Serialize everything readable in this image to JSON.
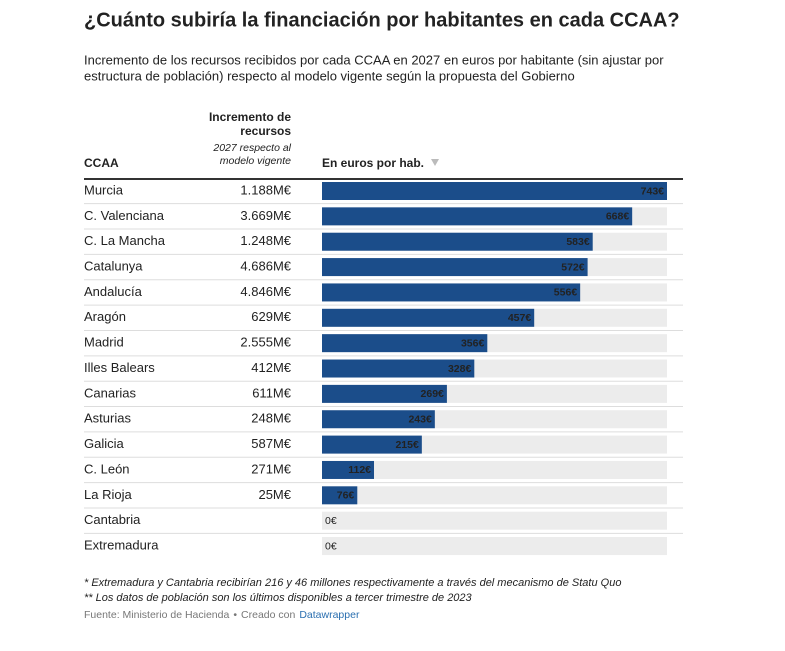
{
  "chart_data": {
    "type": "bar",
    "title": "¿Cuánto subiría la financiación por habitantes en cada CCAA?",
    "subtitle": [
      "Incremento de los recursos recibidos por cada CCAA en 2027 en euros por habitante (sin ajustar por",
      "estructura de población) respecto al modelo vigente según la propuesta del Gobierno"
    ],
    "headers": {
      "region": "CCAA",
      "increase": [
        "Incremento de",
        "recursos"
      ],
      "increase_note": [
        "2027 respecto al",
        "modelo vigente"
      ],
      "bars": "En euros por hab."
    },
    "categories": [
      "Murcia",
      "C. Valenciana",
      "C. La Mancha",
      "Catalunya",
      "Andalucía",
      "Aragón",
      "Madrid",
      "Illes Balears",
      "Canarias",
      "Asturias",
      "Galicia",
      "C. León",
      "La Rioja",
      "Cantabria",
      "Extremadura"
    ],
    "increase": [
      "1.188M€",
      "3.669M€",
      "1.248M€",
      "4.686M€",
      "4.846M€",
      "629M€",
      "2.555M€",
      "412M€",
      "611M€",
      "248M€",
      "587M€",
      "271M€",
      "25M€",
      null,
      null
    ],
    "values": [
      743,
      668,
      583,
      572,
      556,
      457,
      356,
      328,
      269,
      243,
      215,
      112,
      76,
      0,
      0
    ],
    "value_labels": [
      "743€",
      "668€",
      "583€",
      "572€",
      "556€",
      "457€",
      "356€",
      "328€",
      "269€",
      "243€",
      "215€",
      "112€",
      "76€",
      "0€",
      "0€"
    ],
    "color": "#1b4d8a",
    "notes": [
      "* Extremadura y Cantabria recibirían 216 y 46 millones respectivamente a través del mecanismo de Statu Quo",
      "** Los datos de población son los últimos disponibles a tercer trimestre de 2023"
    ],
    "footer": {
      "source": "Fuente: Ministerio de Hacienda",
      "separator": "•",
      "credit": "Creado con",
      "link": "Datawrapper"
    }
  }
}
